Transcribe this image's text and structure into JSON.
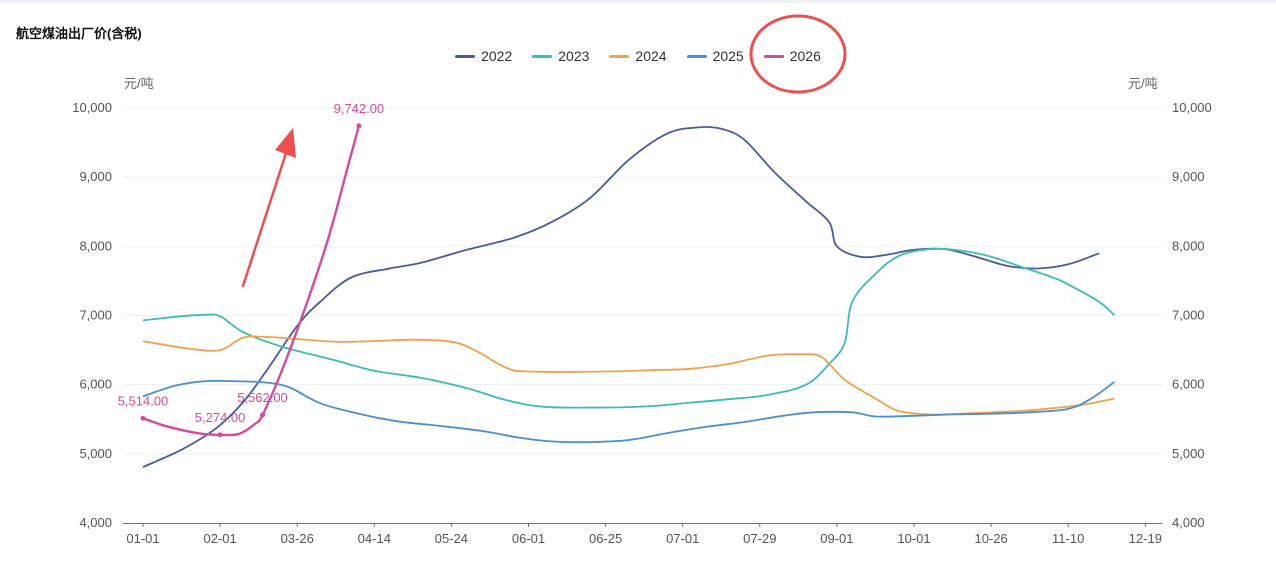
{
  "title": "航空煤油出厂价(含税)",
  "units": {
    "left": "元/吨",
    "right": "元/吨"
  },
  "colors": {
    "2022": "#4a5b9c",
    "2023": "#3dbdb0",
    "2024": "#f0a24e",
    "2025": "#4c8fcf",
    "2026": "#d64a98",
    "annotation": "#ee4e4e"
  },
  "chart_data": {
    "type": "line",
    "x_ticks": [
      "01-01",
      "02-01",
      "03-26",
      "04-14",
      "05-24",
      "06-01",
      "06-25",
      "07-01",
      "07-29",
      "09-01",
      "10-01",
      "10-26",
      "11-10",
      "12-19"
    ],
    "y_ticks": [
      "4,000",
      "5,000",
      "6,000",
      "7,000",
      "8,000",
      "9,000",
      "10,000"
    ],
    "ylim": [
      4000,
      10000
    ],
    "legend_position": "top-center",
    "grid": "horizontal",
    "series": [
      {
        "name": "2022",
        "points": [
          [
            0,
            4810
          ],
          [
            0.5,
            5060
          ],
          [
            0.95,
            5370
          ],
          [
            1.3,
            5750
          ],
          [
            1.6,
            6200
          ],
          [
            2.0,
            6850
          ],
          [
            2.3,
            7200
          ],
          [
            2.7,
            7550
          ],
          [
            3.2,
            7680
          ],
          [
            3.6,
            7760
          ],
          [
            4.2,
            7950
          ],
          [
            4.8,
            8120
          ],
          [
            5.3,
            8350
          ],
          [
            5.8,
            8700
          ],
          [
            6.3,
            9250
          ],
          [
            6.8,
            9630
          ],
          [
            7.2,
            9720
          ],
          [
            7.5,
            9700
          ],
          [
            7.8,
            9540
          ],
          [
            8.2,
            9060
          ],
          [
            8.6,
            8650
          ],
          [
            8.9,
            8350
          ],
          [
            9.0,
            8000
          ],
          [
            9.3,
            7850
          ],
          [
            9.6,
            7870
          ],
          [
            10.0,
            7950
          ],
          [
            10.4,
            7960
          ],
          [
            10.8,
            7850
          ],
          [
            11.2,
            7720
          ],
          [
            11.6,
            7680
          ],
          [
            12.0,
            7740
          ],
          [
            12.4,
            7900
          ]
        ]
      },
      {
        "name": "2023",
        "points": [
          [
            0,
            6930
          ],
          [
            0.5,
            6990
          ],
          [
            0.8,
            7010
          ],
          [
            1.0,
            6990
          ],
          [
            1.3,
            6760
          ],
          [
            1.8,
            6550
          ],
          [
            2.5,
            6350
          ],
          [
            3.0,
            6200
          ],
          [
            3.6,
            6100
          ],
          [
            4.2,
            5950
          ],
          [
            4.7,
            5780
          ],
          [
            5.2,
            5680
          ],
          [
            6.0,
            5670
          ],
          [
            6.6,
            5690
          ],
          [
            7.1,
            5740
          ],
          [
            7.6,
            5790
          ],
          [
            8.1,
            5850
          ],
          [
            8.6,
            6000
          ],
          [
            8.9,
            6300
          ],
          [
            9.1,
            6600
          ],
          [
            9.2,
            7200
          ],
          [
            9.5,
            7600
          ],
          [
            9.8,
            7860
          ],
          [
            10.2,
            7960
          ],
          [
            10.6,
            7940
          ],
          [
            11.0,
            7850
          ],
          [
            11.4,
            7700
          ],
          [
            11.8,
            7550
          ],
          [
            12.0,
            7450
          ],
          [
            12.4,
            7200
          ],
          [
            12.6,
            7000
          ]
        ]
      },
      {
        "name": "2024",
        "points": [
          [
            0,
            6630
          ],
          [
            0.6,
            6520
          ],
          [
            1.0,
            6500
          ],
          [
            1.3,
            6680
          ],
          [
            1.6,
            6690
          ],
          [
            2.0,
            6660
          ],
          [
            2.5,
            6620
          ],
          [
            3.0,
            6630
          ],
          [
            3.5,
            6650
          ],
          [
            4.0,
            6620
          ],
          [
            4.3,
            6500
          ],
          [
            4.7,
            6250
          ],
          [
            5.0,
            6190
          ],
          [
            6.0,
            6190
          ],
          [
            6.6,
            6210
          ],
          [
            7.1,
            6230
          ],
          [
            7.6,
            6300
          ],
          [
            8.1,
            6420
          ],
          [
            8.5,
            6440
          ],
          [
            8.8,
            6400
          ],
          [
            9.1,
            6070
          ],
          [
            9.5,
            5800
          ],
          [
            9.8,
            5620
          ],
          [
            10.2,
            5570
          ],
          [
            10.6,
            5580
          ],
          [
            11.0,
            5600
          ],
          [
            11.4,
            5620
          ],
          [
            11.8,
            5660
          ],
          [
            12.2,
            5710
          ],
          [
            12.6,
            5800
          ]
        ]
      },
      {
        "name": "2025",
        "points": [
          [
            0,
            5830
          ],
          [
            0.4,
            5980
          ],
          [
            0.8,
            6050
          ],
          [
            1.2,
            6050
          ],
          [
            1.6,
            6030
          ],
          [
            1.9,
            5960
          ],
          [
            2.3,
            5730
          ],
          [
            2.8,
            5580
          ],
          [
            3.3,
            5470
          ],
          [
            3.8,
            5410
          ],
          [
            4.4,
            5330
          ],
          [
            4.9,
            5230
          ],
          [
            5.3,
            5180
          ],
          [
            5.8,
            5170
          ],
          [
            6.3,
            5200
          ],
          [
            6.8,
            5300
          ],
          [
            7.3,
            5390
          ],
          [
            7.8,
            5460
          ],
          [
            8.3,
            5550
          ],
          [
            8.7,
            5600
          ],
          [
            9.2,
            5600
          ],
          [
            9.5,
            5540
          ],
          [
            10.0,
            5550
          ],
          [
            10.5,
            5570
          ],
          [
            11.0,
            5580
          ],
          [
            11.5,
            5600
          ],
          [
            12.0,
            5650
          ],
          [
            12.3,
            5800
          ],
          [
            12.6,
            6040
          ]
        ]
      },
      {
        "name": "2026",
        "points": [
          [
            0,
            5514
          ],
          [
            0.3,
            5400
          ],
          [
            0.7,
            5300
          ],
          [
            1.0,
            5274
          ],
          [
            1.25,
            5290
          ],
          [
            1.45,
            5430
          ],
          [
            1.55,
            5562
          ],
          [
            1.8,
            6200
          ],
          [
            2.1,
            7100
          ],
          [
            2.4,
            8100
          ],
          [
            2.62,
            9000
          ],
          [
            2.8,
            9742
          ]
        ]
      }
    ],
    "data_labels": [
      {
        "series": "2026",
        "text": "5,514.00",
        "x": 0,
        "y": 5514
      },
      {
        "series": "2026",
        "text": "5,274.00",
        "x": 1.0,
        "y": 5274
      },
      {
        "series": "2026",
        "text": "5,562.00",
        "x": 1.55,
        "y": 5562
      },
      {
        "series": "2026",
        "text": "9,742.00",
        "x": 2.8,
        "y": 9742
      }
    ]
  }
}
